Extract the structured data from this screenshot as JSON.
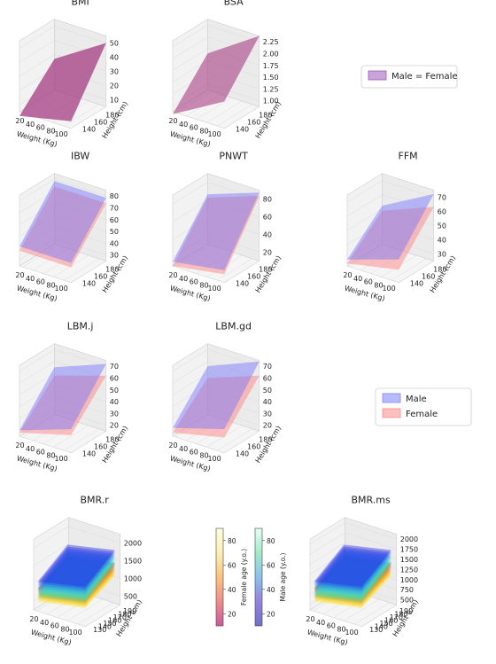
{
  "chart_data": [
    {
      "type": "surface3d",
      "title": "BMI",
      "xlabel": "Weight (Kg)",
      "ylabel": "Height (cm)",
      "x_ticks": [
        "20",
        "40",
        "60",
        "80",
        "100"
      ],
      "y_ticks": [
        "140",
        "160",
        "180"
      ],
      "z_ticks": [
        "10",
        "20",
        "30",
        "40",
        "50"
      ],
      "zlim": [
        5,
        55
      ],
      "series": [
        {
          "name": "Male = Female",
          "values": [
            [
              2,
              10
            ],
            [
              27,
              50
            ]
          ]
        }
      ]
    },
    {
      "type": "surface3d",
      "title": "BSA",
      "xlabel": "Weight (Kg)",
      "ylabel": "Height (cm)",
      "x_ticks": [
        "20",
        "40",
        "60",
        "80",
        "100"
      ],
      "y_ticks": [
        "140",
        "160",
        "180"
      ],
      "z_ticks": [
        "1.00",
        "1.25",
        "1.50",
        "1.75",
        "2.00",
        "2.25"
      ],
      "zlim": [
        0.85,
        2.3
      ],
      "series": [
        {
          "name": "Male = Female",
          "values": [
            [
              0.8,
              1.4
            ],
            [
              1.6,
              2.3
            ]
          ]
        }
      ]
    },
    {
      "type": "surface3d",
      "title": "IBW",
      "xlabel": "Weight (Kg)",
      "ylabel": "Height (cm)",
      "x_ticks": [
        "20",
        "40",
        "60",
        "80",
        "100"
      ],
      "y_ticks": [
        "140",
        "160",
        "180"
      ],
      "z_ticks": [
        "30",
        "40",
        "50",
        "60",
        "70",
        "80"
      ],
      "zlim": [
        20,
        85
      ],
      "series": [
        {
          "name": "Male",
          "values": [
            [
              38,
              38
            ],
            [
              78,
              78
            ]
          ]
        },
        {
          "name": "Female",
          "values": [
            [
              34,
              34
            ],
            [
              73,
              73
            ]
          ]
        }
      ]
    },
    {
      "type": "surface3d",
      "title": "PNWT",
      "xlabel": "Weight (Kg)",
      "ylabel": "Height (cm)",
      "x_ticks": [
        "20",
        "40",
        "60",
        "80",
        "100"
      ],
      "y_ticks": [
        "140",
        "160",
        "180"
      ],
      "z_ticks": [
        "20",
        "40",
        "60",
        "80"
      ],
      "zlim": [
        10,
        95
      ],
      "series": [
        {
          "name": "Male",
          "values": [
            [
              15,
              25
            ],
            [
              70,
              92
            ]
          ]
        },
        {
          "name": "Female",
          "values": [
            [
              10,
              20
            ],
            [
              66,
              88
            ]
          ]
        }
      ]
    },
    {
      "type": "surface3d",
      "title": "FFM",
      "xlabel": "Weight (Kg)",
      "ylabel": "Height (cm)",
      "x_ticks": [
        "20",
        "40",
        "60",
        "80",
        "100"
      ],
      "y_ticks": [
        "140",
        "160",
        "180"
      ],
      "z_ticks": [
        "30",
        "40",
        "50",
        "60",
        "70"
      ],
      "zlim": [
        20,
        75
      ],
      "series": [
        {
          "name": "Male",
          "values": [
            [
              25,
              38
            ],
            [
              50,
              72
            ]
          ]
        },
        {
          "name": "Female",
          "values": [
            [
              22,
              30
            ],
            [
              46,
              62
            ]
          ]
        }
      ]
    },
    {
      "type": "surface3d",
      "title": "LBM.j",
      "xlabel": "Weight (Kg)",
      "ylabel": "Height (cm)",
      "x_ticks": [
        "20",
        "40",
        "60",
        "80",
        "100"
      ],
      "y_ticks": [
        "140",
        "160",
        "180"
      ],
      "z_ticks": [
        "20",
        "30",
        "40",
        "50",
        "60",
        "70"
      ],
      "zlim": [
        15,
        75
      ],
      "series": [
        {
          "name": "Male",
          "values": [
            [
              20,
              35
            ],
            [
              55,
              72
            ]
          ]
        },
        {
          "name": "Female",
          "values": [
            [
              18,
              30
            ],
            [
              48,
              62
            ]
          ]
        }
      ]
    },
    {
      "type": "surface3d",
      "title": "LBM.gd",
      "xlabel": "Weight (Kg)",
      "ylabel": "Height (cm)",
      "x_ticks": [
        "20",
        "40",
        "60",
        "80",
        "100"
      ],
      "y_ticks": [
        "140",
        "160",
        "180"
      ],
      "z_ticks": [
        "20",
        "30",
        "40",
        "50",
        "60",
        "70"
      ],
      "zlim": [
        15,
        75
      ],
      "series": [
        {
          "name": "Male",
          "values": [
            [
              22,
              35
            ],
            [
              56,
              74
            ]
          ]
        },
        {
          "name": "Female",
          "values": [
            [
              18,
              28
            ],
            [
              46,
              62
            ]
          ]
        }
      ]
    },
    {
      "type": "surface3d",
      "title": "BMR.r",
      "xlabel": "Weight (Kg)",
      "ylabel": "Height (cm)",
      "x_ticks": [
        "20",
        "40",
        "60",
        "80",
        "100"
      ],
      "y_ticks": [
        "130",
        "140",
        "150",
        "160",
        "170",
        "180",
        "190"
      ],
      "z_ticks": [
        "500",
        "1000",
        "1500",
        "2000"
      ],
      "zlim": [
        200,
        2200
      ]
    },
    {
      "type": "surface3d",
      "title": "BMR.ms",
      "xlabel": "Weight (Kg)",
      "ylabel": "Height (cm)",
      "x_ticks": [
        "20",
        "40",
        "60",
        "80",
        "100"
      ],
      "y_ticks": [
        "130",
        "140",
        "150",
        "160",
        "170",
        "180",
        "190"
      ],
      "z_ticks": [
        "500",
        "750",
        "1000",
        "1250",
        "1500",
        "1750",
        "2000"
      ],
      "zlim": [
        300,
        2200
      ]
    }
  ],
  "legends": {
    "equal": {
      "label": "Male = Female",
      "color": "#9b59b6"
    },
    "male": {
      "label": "Male",
      "color": "#8080ff"
    },
    "female": {
      "label": "Female",
      "color": "#ff8a8a"
    }
  },
  "colorbars": {
    "female": {
      "label": "Female age (y.o.)",
      "ticks": [
        "20",
        "40",
        "60",
        "80"
      ],
      "range": [
        10,
        90
      ]
    },
    "male": {
      "label": "Male age (y.o.)",
      "ticks": [
        "20",
        "40",
        "60",
        "80"
      ],
      "range": [
        10,
        90
      ]
    }
  },
  "colors": {
    "male": "#7070ff",
    "female": "#ff7a7a",
    "equal": "#a0307a"
  }
}
